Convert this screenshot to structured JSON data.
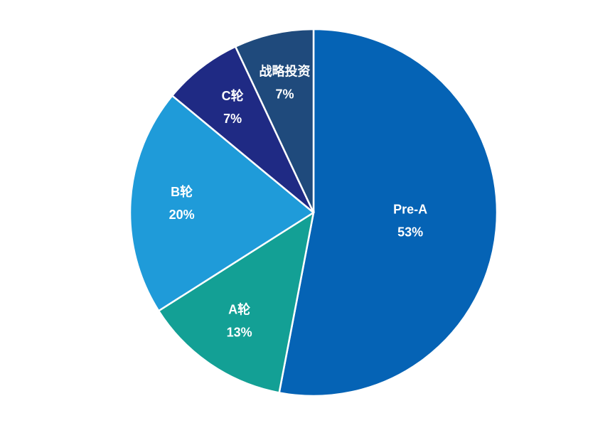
{
  "chart_data": {
    "type": "pie",
    "categories": [
      "Pre-A",
      "A轮",
      "B轮",
      "C轮",
      "战略投资"
    ],
    "values": [
      53,
      13,
      20,
      7,
      7
    ],
    "value_labels": [
      "53%",
      "13%",
      "20%",
      "7%",
      "7%"
    ],
    "colors": [
      "#0563b5",
      "#13a095",
      "#1f9bd9",
      "#1f2a84",
      "#1f4a7c"
    ]
  }
}
